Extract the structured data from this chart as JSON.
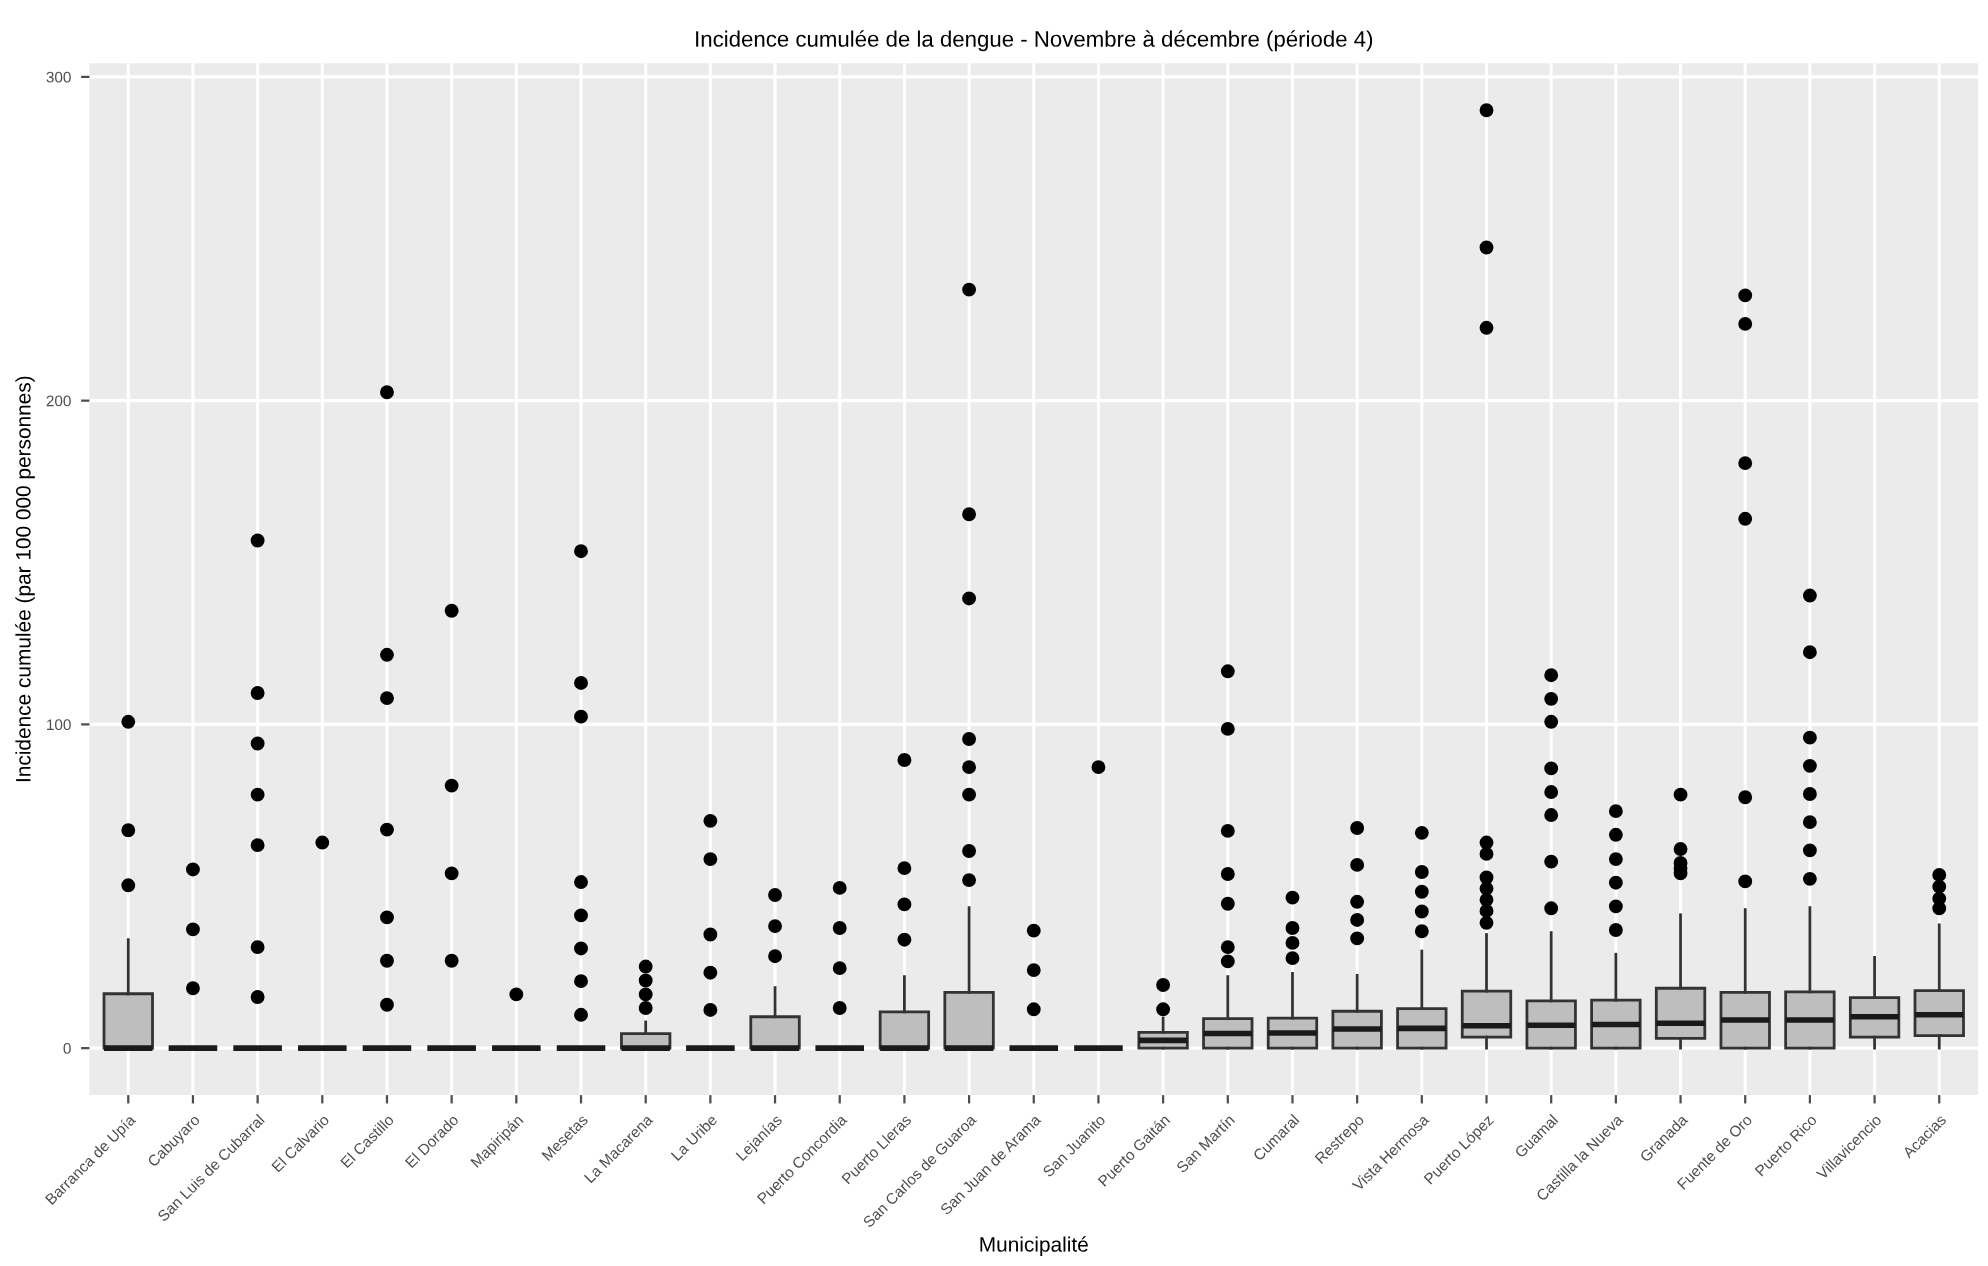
{
  "chart_data": {
    "type": "box",
    "title": "Incidence cumulée de la dengue - Novembre à décembre (période 4)",
    "xlabel": "Municipalité",
    "ylabel": "Incidence cumulée (par 100 000 personnes)",
    "categories": [
      "Barranca de Upía",
      "Cabuyaro",
      "San Luis de Cubarral",
      "El Calvario",
      "El Castillo",
      "El Dorado",
      "Mapiripán",
      "Mesetas",
      "La Macarena",
      "La Uribe",
      "Lejanías",
      "Puerto Concordia",
      "Puerto Lleras",
      "San Carlos de Guaroa",
      "San Juan de Arama",
      "San Juanito",
      "Puerto Gaitán",
      "San Martín",
      "Cumaral",
      "Restrepo",
      "Vista Hermosa",
      "Puerto López",
      "Guamal",
      "Castilla la Nueva",
      "Granada",
      "Fuente de Oro",
      "Puerto Rico",
      "Villavicencio",
      "Acacias"
    ],
    "ylim": [
      -14.5,
      304.2
    ],
    "yticks": [
      0,
      100,
      200,
      300
    ],
    "grid": true,
    "series": [
      {
        "color": "#bebebe",
        "boxes": [
          {
            "low": 0,
            "q1": 0,
            "median": 0,
            "q3": 16.8,
            "high": 33.5,
            "outliers": [
              100.8,
              67.3,
              50.3
            ]
          },
          {
            "low": 0,
            "q1": 0,
            "median": 0,
            "q3": 0,
            "high": 0,
            "outliers": [
              55.2,
              36.7,
              18.5
            ]
          },
          {
            "low": 0,
            "q1": 0,
            "median": 0,
            "q3": 0,
            "high": 0,
            "outliers": [
              156.8,
              109.7,
              94.1,
              78.3,
              62.7,
              31.2,
              15.8
            ]
          },
          {
            "low": 0,
            "q1": 0,
            "median": 0,
            "q3": 0,
            "high": 0,
            "outliers": [
              63.5
            ]
          },
          {
            "low": 0,
            "q1": 0,
            "median": 0,
            "q3": 0,
            "high": 0,
            "outliers": [
              202.6,
              121.5,
              108.1,
              67.5,
              40.4,
              27.0,
              13.4
            ]
          },
          {
            "low": 0,
            "q1": 0,
            "median": 0,
            "q3": 0,
            "high": 0,
            "outliers": [
              135.1,
              81.1,
              54.0,
              27.0
            ]
          },
          {
            "low": 0,
            "q1": 0,
            "median": 0,
            "q3": 0,
            "high": 0,
            "outliers": [
              16.6
            ]
          },
          {
            "low": 0,
            "q1": 0,
            "median": 0,
            "q3": 0,
            "high": 0,
            "outliers": [
              153.5,
              112.8,
              102.4,
              51.3,
              41.0,
              30.8,
              20.7,
              10.3
            ]
          },
          {
            "low": 0,
            "q1": 0,
            "median": 0,
            "q3": 4.5,
            "high": 8.1,
            "outliers": [
              25.2,
              20.9,
              16.6,
              12.4
            ]
          },
          {
            "low": 0,
            "q1": 0,
            "median": 0,
            "q3": 0,
            "high": 0,
            "outliers": [
              70.2,
              58.4,
              35.1,
              23.3,
              11.8
            ]
          },
          {
            "low": 0,
            "q1": 0,
            "median": 0,
            "q3": 9.7,
            "high": 18.7,
            "outliers": [
              47.3,
              37.7,
              28.4
            ]
          },
          {
            "low": 0,
            "q1": 0,
            "median": 0,
            "q3": 0,
            "high": 0,
            "outliers": [
              49.5,
              37.1,
              24.7,
              12.4
            ]
          },
          {
            "low": 0,
            "q1": 0,
            "median": 0,
            "q3": 11.2,
            "high": 22.1,
            "outliers": [
              89.0,
              55.6,
              44.4,
              33.5
            ]
          },
          {
            "low": 0,
            "q1": 0,
            "median": 0,
            "q3": 17.2,
            "high": 43.4,
            "outliers": [
              234.3,
              164.9,
              138.9,
              95.5,
              86.8,
              78.3,
              60.9,
              51.9
            ]
          },
          {
            "low": 0,
            "q1": 0,
            "median": 0,
            "q3": 0,
            "high": 0,
            "outliers": [
              36.3,
              24.1,
              12.0
            ]
          },
          {
            "low": 0,
            "q1": 0,
            "median": 0,
            "q3": 0,
            "high": 0,
            "outliers": [
              86.8
            ]
          },
          {
            "low": 0,
            "q1": 0,
            "median": 2.4,
            "q3": 4.9,
            "high": 9.3,
            "outliers": [
              19.5,
              12.0
            ]
          },
          {
            "low": 0,
            "q1": 0,
            "median": 4.5,
            "q3": 9.1,
            "high": 22.1,
            "outliers": [
              116.4,
              98.6,
              67.1,
              53.8,
              44.6,
              31.2,
              26.8
            ]
          },
          {
            "low": 0,
            "q1": 0,
            "median": 4.7,
            "q3": 9.3,
            "high": 23.1,
            "outliers": [
              46.5,
              37.1,
              32.5,
              27.8
            ]
          },
          {
            "low": 0,
            "q1": 0,
            "median": 5.9,
            "q3": 11.4,
            "high": 22.5,
            "outliers": [
              68.0,
              56.6,
              45.2,
              39.6,
              33.9
            ]
          },
          {
            "low": 0,
            "q1": 0,
            "median": 6.1,
            "q3": 12.2,
            "high": 30.0,
            "outliers": [
              66.5,
              54.4,
              48.3,
              42.2,
              36.1
            ]
          },
          {
            "low": 0,
            "q1": 3.4,
            "median": 6.9,
            "q3": 17.6,
            "high": 35.1,
            "outliers": [
              289.7,
              247.3,
              222.5,
              63.5,
              60.0,
              52.7,
              49.3,
              45.8,
              42.4,
              38.7
            ]
          },
          {
            "low": 0,
            "q1": 0,
            "median": 7.1,
            "q3": 14.6,
            "high": 35.7,
            "outliers": [
              115.2,
              107.9,
              100.8,
              86.4,
              79.1,
              72.0,
              57.6,
              43.2
            ]
          },
          {
            "low": 0,
            "q1": 0,
            "median": 7.3,
            "q3": 14.8,
            "high": 29.0,
            "outliers": [
              73.2,
              65.9,
              58.4,
              51.1,
              43.8,
              36.5
            ]
          },
          {
            "low": 0,
            "q1": 3.0,
            "median": 7.7,
            "q3": 18.5,
            "high": 41.2,
            "outliers": [
              78.3,
              61.5,
              57.2,
              55.6,
              54.0
            ]
          },
          {
            "low": 0,
            "q1": 0,
            "median": 8.7,
            "q3": 17.2,
            "high": 42.8,
            "outliers": [
              232.5,
              223.7,
              180.7,
              163.5,
              77.5,
              51.5
            ]
          },
          {
            "low": 0,
            "q1": 0,
            "median": 8.7,
            "q3": 17.4,
            "high": 43.4,
            "outliers": [
              139.8,
              122.3,
              95.9,
              87.2,
              78.5,
              69.8,
              61.1,
              52.3
            ]
          },
          {
            "low": 0,
            "q1": 3.4,
            "median": 9.7,
            "q3": 15.6,
            "high": 28.0
          },
          {
            "low": 0,
            "q1": 3.9,
            "median": 10.3,
            "q3": 17.8,
            "high": 38.1,
            "outliers": [
              53.5,
              49.9,
              46.2,
              43.2
            ]
          }
        ]
      }
    ]
  }
}
